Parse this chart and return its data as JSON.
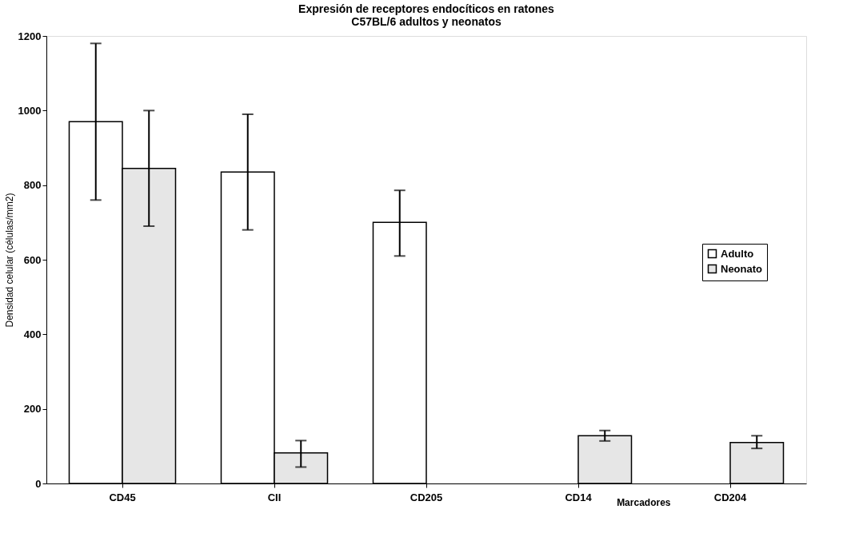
{
  "chart_data": {
    "type": "bar",
    "title": "Expresión de receptores endocíticos en ratones\nC57BL/6 adultos y neonatos",
    "xlabel": "Marcadores",
    "ylabel": "Densidad celular (células/mm2)",
    "categories": [
      "CD45",
      "CII",
      "CD205",
      "CD14",
      "CD204"
    ],
    "series": [
      {
        "name": "Adulto",
        "color": "#ffffff",
        "values": [
          970,
          835,
          700,
          null,
          null
        ],
        "errors": [
          [
            760,
            1180
          ],
          [
            680,
            990
          ],
          [
            610,
            786
          ],
          null,
          null
        ]
      },
      {
        "name": "Neonato",
        "color": "#e6e6e6",
        "values": [
          845,
          82,
          null,
          128,
          110
        ],
        "errors": [
          [
            690,
            1000
          ],
          [
            44,
            115
          ],
          null,
          [
            114,
            142
          ],
          [
            94,
            128
          ]
        ]
      }
    ],
    "ylim": [
      0,
      1200
    ],
    "yticks": [
      0,
      200,
      400,
      600,
      800,
      1000,
      1200
    ],
    "grid": false,
    "legend": "right"
  }
}
